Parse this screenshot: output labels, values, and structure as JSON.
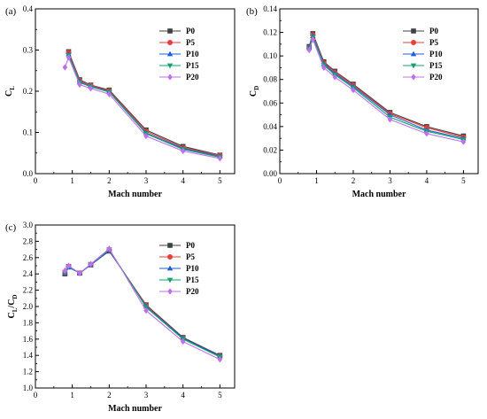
{
  "chart_data": [
    {
      "id": "a",
      "type": "line",
      "panel_label": "(a)",
      "xlabel": "Mach number",
      "ylabel": "C_L",
      "ylabel_main": "C",
      "ylabel_sub": "L",
      "xlim": [
        0,
        5.4
      ],
      "ylim": [
        0,
        0.4
      ],
      "xticks": [
        0,
        1,
        2,
        3,
        4,
        5
      ],
      "xtick_labels": [
        "0",
        "1",
        "2",
        "3",
        "4",
        "5"
      ],
      "yticks": [
        0,
        0.1,
        0.2,
        0.3,
        0.4
      ],
      "ytick_labels": [
        "0.0",
        "0.1",
        "0.2",
        "0.3",
        "0.4"
      ],
      "legend_position": "top-right",
      "x": [
        0.8,
        0.9,
        1.2,
        1.5,
        2.0,
        3.0,
        4.0,
        5.0
      ],
      "series": [
        {
          "name": "P0",
          "values": [
            null,
            0.296,
            0.228,
            0.215,
            0.203,
            0.106,
            0.066,
            0.045
          ]
        },
        {
          "name": "P5",
          "values": [
            null,
            0.294,
            0.226,
            0.214,
            0.201,
            0.103,
            0.063,
            0.044
          ]
        },
        {
          "name": "P10",
          "values": [
            null,
            0.29,
            0.223,
            0.212,
            0.199,
            0.099,
            0.061,
            0.042
          ]
        },
        {
          "name": "P15",
          "values": [
            null,
            0.287,
            0.221,
            0.211,
            0.198,
            0.097,
            0.059,
            0.04
          ]
        },
        {
          "name": "P20",
          "values": [
            0.258,
            0.282,
            0.216,
            0.207,
            0.193,
            0.091,
            0.055,
            0.037
          ]
        }
      ]
    },
    {
      "id": "b",
      "type": "line",
      "panel_label": "(b)",
      "xlabel": "Mach number",
      "ylabel": "C_D",
      "ylabel_main": "C",
      "ylabel_sub": "D",
      "xlim": [
        0,
        5.4
      ],
      "ylim": [
        0,
        0.14
      ],
      "xticks": [
        0,
        1,
        2,
        3,
        4,
        5
      ],
      "xtick_labels": [
        "0",
        "1",
        "2",
        "3",
        "4",
        "5"
      ],
      "yticks": [
        0,
        0.02,
        0.04,
        0.06,
        0.08,
        0.1,
        0.12,
        0.14
      ],
      "ytick_labels": [
        "0.00",
        "0.02",
        "0.04",
        "0.06",
        "0.08",
        "0.10",
        "0.12",
        "0.14"
      ],
      "legend_position": "top-right",
      "x": [
        0.8,
        0.9,
        1.2,
        1.5,
        2.0,
        3.0,
        4.0,
        5.0
      ],
      "series": [
        {
          "name": "P0",
          "values": [
            0.108,
            0.119,
            0.095,
            0.087,
            0.076,
            0.052,
            0.04,
            0.032
          ]
        },
        {
          "name": "P5",
          "values": [
            0.107,
            0.118,
            0.094,
            0.086,
            0.075,
            0.051,
            0.039,
            0.031
          ]
        },
        {
          "name": "P10",
          "values": [
            0.107,
            0.117,
            0.093,
            0.085,
            0.074,
            0.05,
            0.037,
            0.03
          ]
        },
        {
          "name": "P15",
          "values": [
            0.106,
            0.116,
            0.092,
            0.084,
            0.073,
            0.048,
            0.036,
            0.029
          ]
        },
        {
          "name": "P20",
          "values": [
            0.105,
            0.114,
            0.09,
            0.082,
            0.071,
            0.046,
            0.034,
            0.027
          ]
        }
      ]
    },
    {
      "id": "c",
      "type": "line",
      "panel_label": "(c)",
      "xlabel": "Mach number",
      "ylabel": "C_L/C_D",
      "ylabel_main": "C",
      "ylabel_sub": "L",
      "ylabel_mid": "/C",
      "ylabel_sub2": "D",
      "xlim": [
        0,
        5.4
      ],
      "ylim": [
        1.0,
        3.0
      ],
      "xticks": [
        0,
        1,
        2,
        3,
        4,
        5
      ],
      "xtick_labels": [
        "0",
        "1",
        "2",
        "3",
        "4",
        "5"
      ],
      "yticks": [
        1.0,
        1.2,
        1.4,
        1.6,
        1.8,
        2.0,
        2.2,
        2.4,
        2.6,
        2.8,
        3.0
      ],
      "ytick_labels": [
        "1.0",
        "1.2",
        "1.4",
        "1.6",
        "1.8",
        "2.0",
        "2.2",
        "2.4",
        "2.6",
        "2.8",
        "3.0"
      ],
      "legend_position": "top-right",
      "x": [
        0.8,
        0.9,
        1.2,
        1.5,
        2.0,
        3.0,
        4.0,
        5.0
      ],
      "series": [
        {
          "name": "P0",
          "values": [
            2.4,
            2.49,
            2.41,
            2.51,
            2.68,
            2.02,
            1.62,
            1.4
          ]
        },
        {
          "name": "P5",
          "values": [
            2.41,
            2.49,
            2.41,
            2.51,
            2.69,
            2.01,
            1.61,
            1.39
          ]
        },
        {
          "name": "P10",
          "values": [
            2.41,
            2.48,
            2.41,
            2.51,
            2.69,
            2.0,
            1.61,
            1.39
          ]
        },
        {
          "name": "P15",
          "values": [
            2.42,
            2.49,
            2.41,
            2.52,
            2.7,
            1.99,
            1.6,
            1.38
          ]
        },
        {
          "name": "P20",
          "values": [
            2.44,
            2.5,
            2.41,
            2.52,
            2.71,
            1.95,
            1.57,
            1.35
          ]
        }
      ]
    }
  ],
  "series_styles": [
    {
      "name": "P0",
      "color": "#404040",
      "marker": "square"
    },
    {
      "name": "P5",
      "color": "#ee3b3b",
      "marker": "circle"
    },
    {
      "name": "P10",
      "color": "#1f5fd6",
      "marker": "triangle-up"
    },
    {
      "name": "P15",
      "color": "#12a36a",
      "marker": "triangle-down"
    },
    {
      "name": "P20",
      "color": "#c070ee",
      "marker": "diamond"
    }
  ]
}
